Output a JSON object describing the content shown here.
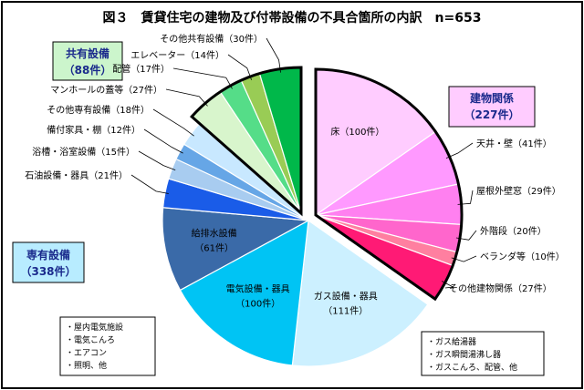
{
  "chart_data": {
    "type": "pie",
    "title": "図３　賃貸住宅の建物及び付帯設備の不具合箇所の内訳　n=653",
    "total": 653,
    "groups": [
      {
        "key": "building",
        "name": "建物関係",
        "count_label": "（227件）",
        "slices": [
          {
            "label": "床（100件）",
            "value": 100,
            "color": "#ffccff"
          },
          {
            "label": "天井・壁（41件）",
            "value": 41,
            "color": "#ff99ff"
          },
          {
            "label": "屋根外壁窓（29件）",
            "value": 29,
            "color": "#ff80f0"
          },
          {
            "label": "外階段（20件）",
            "value": 20,
            "color": "#ff66cc"
          },
          {
            "label": "ベランダ等（10件）",
            "value": 10,
            "color": "#ff7fa0"
          },
          {
            "label": "その他建物関係（27件）",
            "value": 27,
            "color": "#ff1a75"
          }
        ]
      },
      {
        "key": "private",
        "name": "専有設備",
        "count_label": "（338件）",
        "slices": [
          {
            "label": "ガス設備・器具",
            "sub": "（111件）",
            "value": 111,
            "color": "#ccf0ff"
          },
          {
            "label": "電気設備・器具",
            "sub": "（100件）",
            "value": 100,
            "color": "#00c4f4"
          },
          {
            "label": "給排水設備",
            "sub": "（61件）",
            "value": 61,
            "color": "#3a6aa8"
          },
          {
            "label": "石油設備・器具（21件）",
            "value": 21,
            "color": "#1a5ce8"
          },
          {
            "label": "浴槽・浴室設備（15件）",
            "value": 15,
            "color": "#a8ccf0"
          },
          {
            "label": "備付家具・棚（12件）",
            "value": 12,
            "color": "#66a6e6"
          },
          {
            "label": "その他専有設備（18件）",
            "value": 18,
            "color": "#c8e8ff"
          }
        ]
      },
      {
        "key": "shared",
        "name": "共有設備",
        "count_label": "（88件）",
        "slices": [
          {
            "label": "マンホールの蓋等（27件）",
            "value": 27,
            "color": "#d8f5cc"
          },
          {
            "label": "配管（17件）",
            "value": 17,
            "color": "#55dd88"
          },
          {
            "label": "エレベーター（14件）",
            "value": 14,
            "color": "#99cc55"
          },
          {
            "label": "その他共有設備（30件）",
            "value": 30,
            "color": "#00b84a"
          }
        ]
      }
    ],
    "notes": {
      "electric": [
        "・屋内電気施設",
        "・電気こんろ",
        "・エアコン",
        "・照明、他"
      ],
      "gas": [
        "・ガス給湯器",
        "・ガス瞬間湯沸し器",
        "・ガスこんろ、配管、他"
      ]
    }
  }
}
